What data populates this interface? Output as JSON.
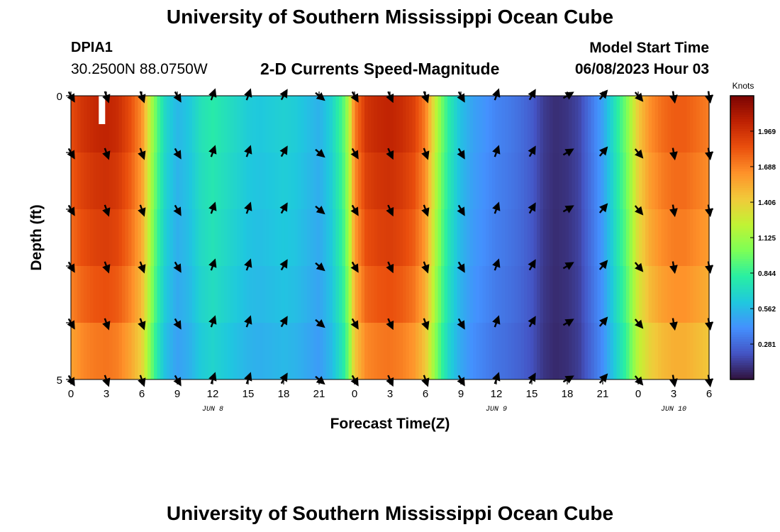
{
  "header": {
    "title": "University of Southern Mississippi Ocean Cube",
    "station_id": "DPIA1",
    "coordinates": "30.2500N  88.0750W",
    "subtitle": "2-D Currents Speed-Magnitude",
    "model_start_label": "Model Start Time",
    "model_start_value": "06/08/2023 Hour 03"
  },
  "footer": {
    "title": "University of Southern Mississippi Ocean Cube"
  },
  "chart_data": {
    "type": "heatmap",
    "title": "2-D Currents Speed-Magnitude",
    "xlabel": "Forecast Time(Z)",
    "ylabel": "Depth (ft)",
    "x_range_hours": [
      0,
      54
    ],
    "y_range_ft": [
      0,
      5
    ],
    "y_ticks": [
      "0",
      "5"
    ],
    "x_ticks": [
      {
        "hour": 0,
        "label": "0"
      },
      {
        "hour": 3,
        "label": "3"
      },
      {
        "hour": 6,
        "label": "6"
      },
      {
        "hour": 9,
        "label": "9"
      },
      {
        "hour": 12,
        "label": "12"
      },
      {
        "hour": 15,
        "label": "15"
      },
      {
        "hour": 18,
        "label": "18"
      },
      {
        "hour": 21,
        "label": "21"
      },
      {
        "hour": 24,
        "label": "0"
      },
      {
        "hour": 27,
        "label": "3"
      },
      {
        "hour": 30,
        "label": "6"
      },
      {
        "hour": 33,
        "label": "9"
      },
      {
        "hour": 36,
        "label": "12"
      },
      {
        "hour": 39,
        "label": "15"
      },
      {
        "hour": 42,
        "label": "18"
      },
      {
        "hour": 45,
        "label": "21"
      },
      {
        "hour": 48,
        "label": "0"
      },
      {
        "hour": 51,
        "label": "3"
      },
      {
        "hour": 54,
        "label": "6"
      }
    ],
    "day_labels": [
      {
        "hour": 12,
        "label": "JUN 8"
      },
      {
        "hour": 36,
        "label": "JUN 9"
      },
      {
        "hour": 51,
        "label": "JUN 10"
      }
    ],
    "colorbar": {
      "title": "Knots",
      "range": [
        0,
        2.25
      ],
      "tick_labels": [
        "1.969",
        "1.688",
        "1.406",
        "1.125",
        "0.844",
        "0.562",
        "0.281"
      ],
      "colors": [
        "#30123b",
        "#4454c4",
        "#4490fe",
        "#1fc8de",
        "#29efa2",
        "#7dff56",
        "#c1f334",
        "#f1ca3a",
        "#fe922a",
        "#ea4f0d",
        "#be2102",
        "#7a0403"
      ]
    },
    "depth_levels_ft": [
      0,
      1,
      2,
      3,
      4,
      5
    ],
    "speed_profile_knots": {
      "hours": [
        0,
        1,
        2,
        3,
        4,
        5,
        6,
        7,
        7.5,
        8,
        9,
        10,
        11,
        12,
        13,
        14,
        15,
        16,
        17,
        18,
        19,
        20,
        21,
        22,
        23,
        23.5,
        24,
        25,
        26,
        27,
        28,
        29,
        30,
        31,
        31.5,
        32,
        33,
        34,
        35,
        36,
        37,
        38,
        39,
        40,
        41,
        42,
        43,
        44,
        45,
        46,
        47,
        48,
        49,
        50,
        51,
        52,
        53,
        54
      ],
      "values": [
        1.75,
        1.85,
        1.9,
        1.92,
        1.88,
        1.75,
        1.55,
        1.0,
        0.8,
        0.65,
        0.52,
        0.58,
        0.7,
        0.75,
        0.7,
        0.65,
        0.6,
        0.58,
        0.6,
        0.62,
        0.6,
        0.55,
        0.5,
        0.62,
        0.85,
        1.1,
        1.6,
        1.85,
        1.9,
        1.92,
        1.88,
        1.8,
        1.6,
        1.1,
        0.9,
        0.75,
        0.55,
        0.45,
        0.4,
        0.35,
        0.32,
        0.28,
        0.22,
        0.12,
        0.08,
        0.1,
        0.15,
        0.3,
        0.45,
        0.7,
        0.95,
        1.35,
        1.55,
        1.65,
        1.7,
        1.7,
        1.65,
        1.6
      ]
    },
    "depth_factor": [
      1.06,
      1.03,
      1.0,
      0.96,
      0.9
    ],
    "arrow_hours": [
      0,
      3,
      6,
      9,
      12,
      15,
      18,
      21,
      24,
      27,
      30,
      33,
      36,
      39,
      42,
      45,
      48,
      51,
      54
    ],
    "arrow_depths_ft": [
      0,
      1,
      2,
      3,
      4,
      5
    ],
    "arrow_direction_deg_by_hour": [
      150,
      160,
      160,
      150,
      20,
      20,
      30,
      130,
      150,
      155,
      160,
      150,
      20,
      30,
      60,
      40,
      140,
      170,
      170
    ],
    "data_gap": {
      "hour": 2.6,
      "depth_ft": [
        0,
        0.5
      ]
    }
  }
}
